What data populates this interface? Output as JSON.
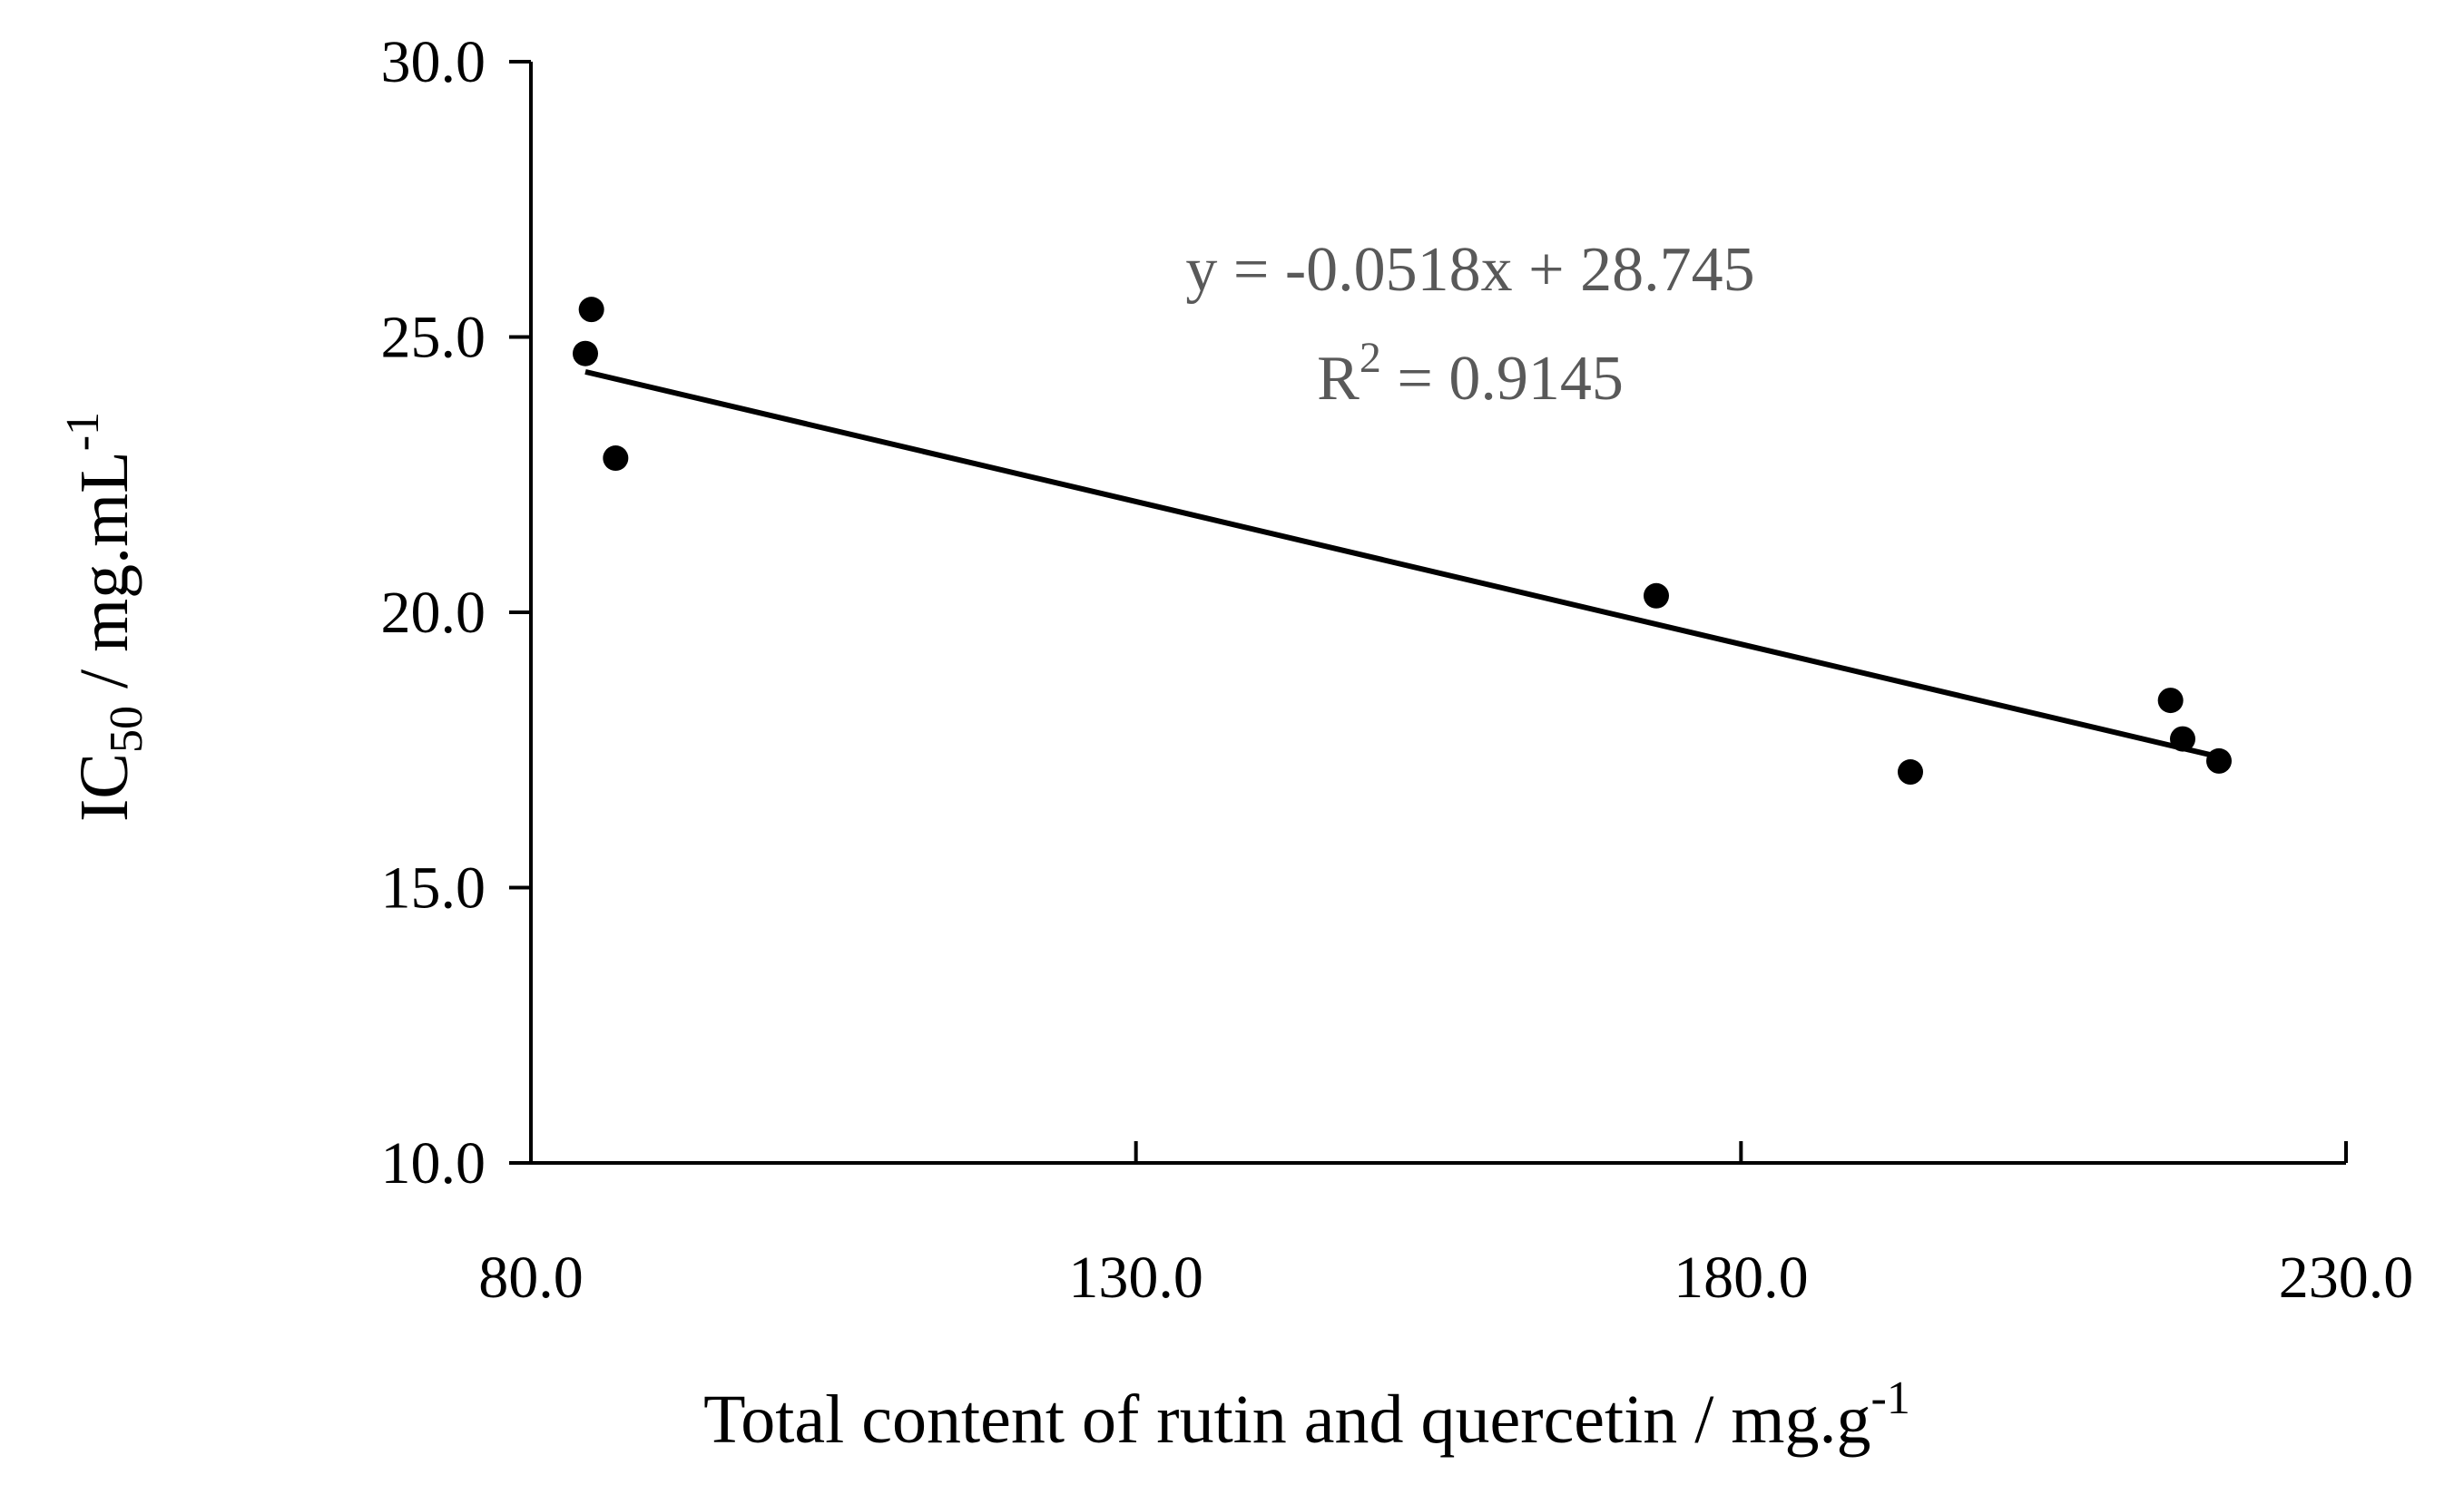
{
  "chart_data": {
    "type": "scatter",
    "title": "",
    "xlabel": {
      "main": "Total content of rutin and quercetin / mg.g",
      "superscript": "-1"
    },
    "ylabel": {
      "prefix": "IC",
      "subscript": "50",
      "main": " / mg.mL",
      "superscript": "-1"
    },
    "xlim": [
      80.0,
      230.0
    ],
    "ylim": [
      10.0,
      30.0
    ],
    "xticks": [
      "80.0",
      "130.0",
      "180.0",
      "230.0"
    ],
    "yticks": [
      "10.0",
      "15.0",
      "20.0",
      "25.0",
      "30.0"
    ],
    "x_tick_values": [
      80,
      130,
      180,
      230
    ],
    "y_tick_values": [
      10,
      15,
      20,
      25,
      30
    ],
    "grid": false,
    "legend": "none",
    "series": [
      {
        "marker_color": "#000000",
        "points": [
          {
            "x": 84.5,
            "y": 24.7
          },
          {
            "x": 85.0,
            "y": 25.5
          },
          {
            "x": 87.0,
            "y": 22.8
          },
          {
            "x": 173.0,
            "y": 20.3
          },
          {
            "x": 194.0,
            "y": 17.1
          },
          {
            "x": 215.5,
            "y": 18.4
          },
          {
            "x": 216.5,
            "y": 17.7
          },
          {
            "x": 219.5,
            "y": 17.3
          }
        ]
      }
    ],
    "trendline": {
      "slope": -0.0518,
      "intercept": 28.745,
      "x_range": [
        84.5,
        219.5
      ],
      "color": "#000000"
    },
    "annotations": {
      "equation": "y = -0.0518x + 28.745",
      "r2_prefix": "R",
      "r2_superscript": "2",
      "r2_value": " = 0.9145",
      "color": "#595959"
    }
  }
}
